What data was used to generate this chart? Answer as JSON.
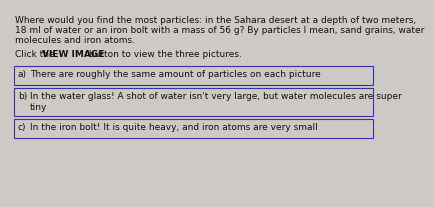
{
  "background_color": "#cdc9c4",
  "question_lines": [
    "Where would you find the most particles: in the Sahara desert at a depth of two meters,",
    "18 ml of water or an iron bolt with a mass of 56 g? By particles I mean, sand grains, water",
    "molecules and iron atoms."
  ],
  "click_normal1": "Click the ",
  "click_bold": "VIEW IMAGE",
  "click_normal2": " button to view the three pictures.",
  "options": [
    {
      "label": "a)",
      "line1": "There are roughly the same amount of particles on each picture",
      "line2": null
    },
    {
      "label": "b)",
      "line1": "In the water glass! A shot of water isn't very large, but water molecules are super",
      "line2": "tiny"
    },
    {
      "label": "c)",
      "line1": "In the iron bolt! It is quite heavy, and iron atoms are very small",
      "line2": null
    }
  ],
  "box_face": "#cdc9c4",
  "box_edge": "#3333aa",
  "text_color": "#111111",
  "fs_main": 6.5,
  "fs_click": 6.5,
  "fs_option": 6.5
}
